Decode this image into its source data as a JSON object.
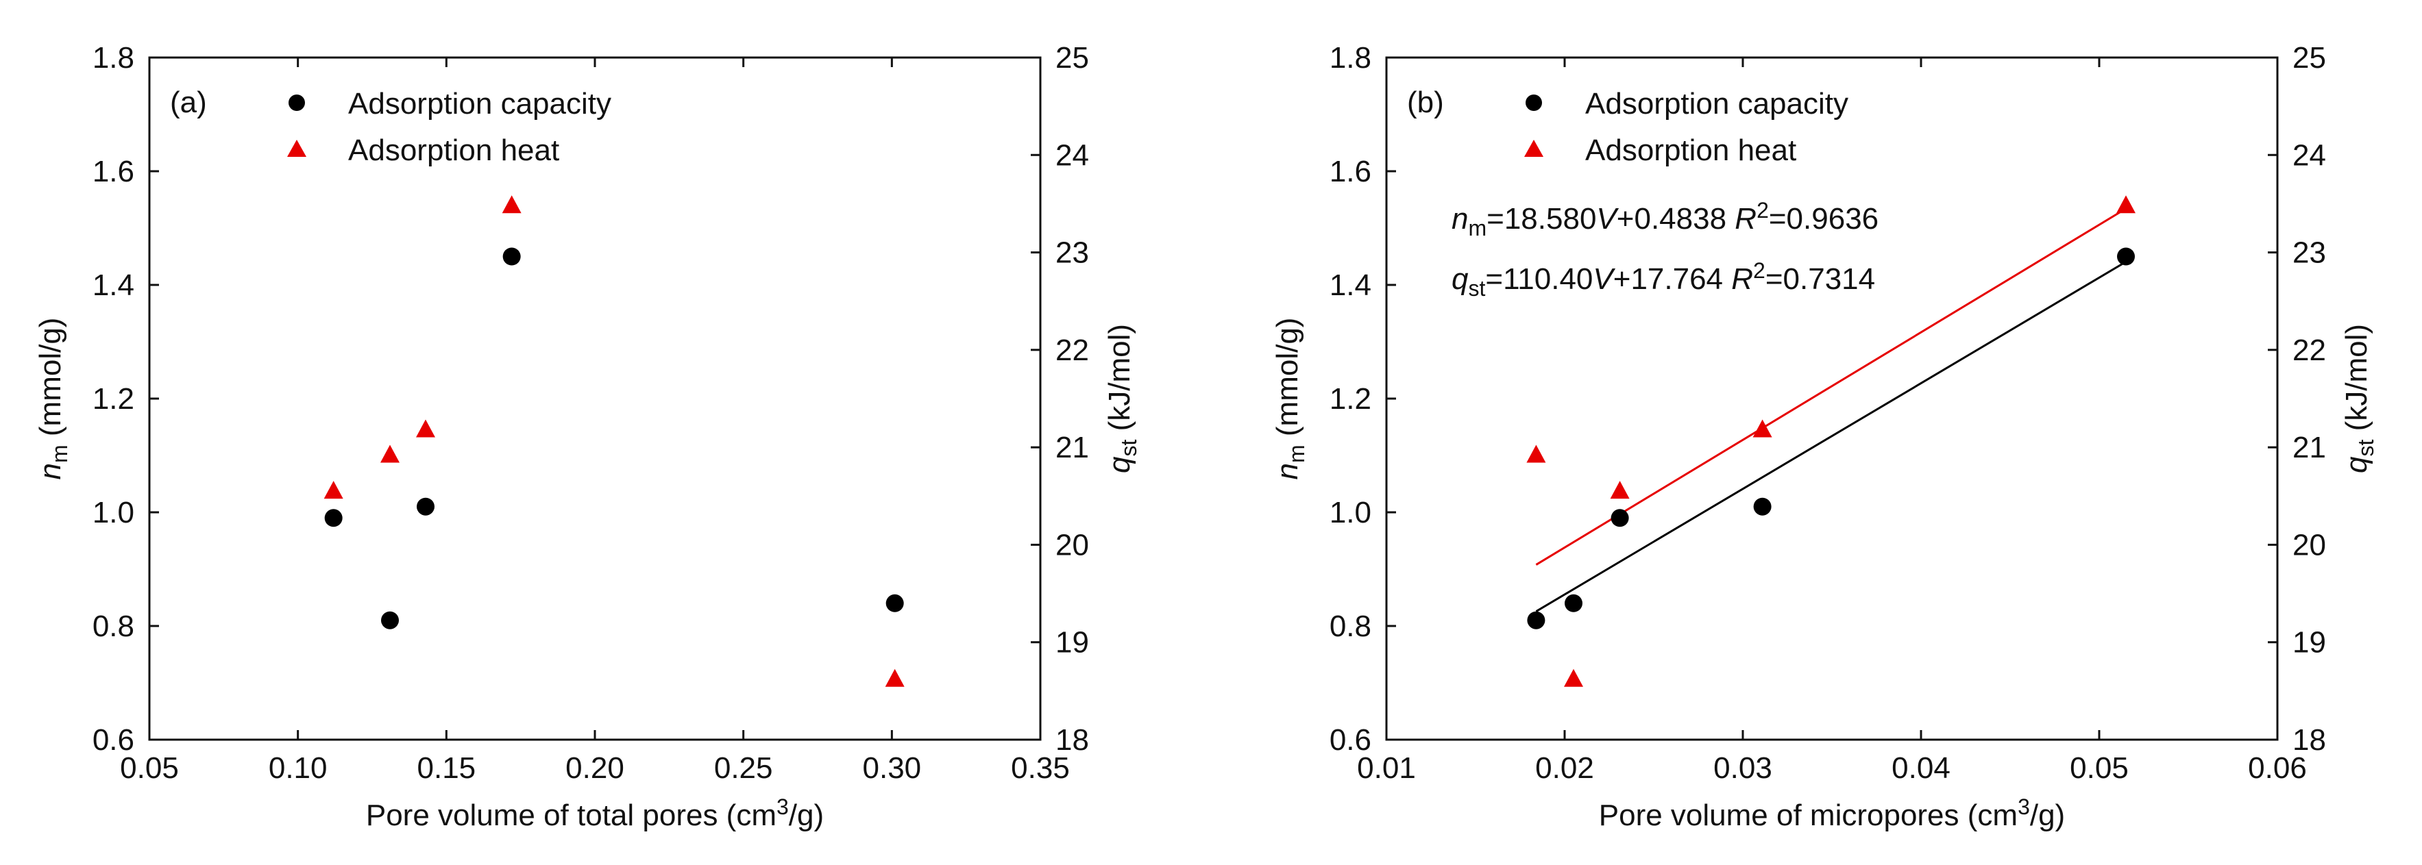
{
  "colors": {
    "capacity": "#000000",
    "heat": "#e60000",
    "axis": "#111111"
  },
  "chart_data": [
    {
      "type": "scatter",
      "panel_label": "(a)",
      "xlabel": "Pore volume of total pores  (cm³/g)",
      "ylabel_left": "nm (mmol/g)",
      "ylabel_right": "qst (kJ/mol)",
      "xlim": [
        0.05,
        0.35
      ],
      "xticks": [
        "0.05",
        "0.10",
        "0.15",
        "0.20",
        "0.25",
        "0.30",
        "0.35"
      ],
      "ylim_left": [
        0.6,
        1.8
      ],
      "yticks_left": [
        "0.6",
        "0.8",
        "1.0",
        "1.2",
        "1.4",
        "1.6",
        "1.8"
      ],
      "ylim_right": [
        18,
        25
      ],
      "yticks_right": [
        "18",
        "19",
        "20",
        "21",
        "22",
        "23",
        "24",
        "25"
      ],
      "legend": [
        "Adsorption capacity",
        "Adsorption heat"
      ],
      "legend_position": "top-left",
      "series": [
        {
          "name": "Adsorption capacity",
          "marker": "circle",
          "axis": "left",
          "points": [
            [
              0.112,
              0.99
            ],
            [
              0.131,
              0.81
            ],
            [
              0.143,
              1.01
            ],
            [
              0.172,
              1.45
            ],
            [
              0.301,
              0.84
            ]
          ]
        },
        {
          "name": "Adsorption heat",
          "marker": "triangle",
          "axis": "right",
          "points": [
            [
              0.112,
              20.55
            ],
            [
              0.131,
              20.92
            ],
            [
              0.143,
              21.18
            ],
            [
              0.172,
              23.48
            ],
            [
              0.301,
              18.62
            ]
          ]
        }
      ],
      "fits": [],
      "annotations": []
    },
    {
      "type": "scatter",
      "panel_label": "(b)",
      "xlabel": "Pore volume of micropores  (cm³/g)",
      "ylabel_left": "nm (mmol/g)",
      "ylabel_right": "qst (kJ/mol)",
      "xlim": [
        0.01,
        0.06
      ],
      "xticks": [
        "0.01",
        "0.02",
        "0.03",
        "0.04",
        "0.05",
        "0.06"
      ],
      "ylim_left": [
        0.6,
        1.8
      ],
      "yticks_left": [
        "0.6",
        "0.8",
        "1.0",
        "1.2",
        "1.4",
        "1.6",
        "1.8"
      ],
      "ylim_right": [
        18,
        25
      ],
      "yticks_right": [
        "18",
        "19",
        "20",
        "21",
        "22",
        "23",
        "24",
        "25"
      ],
      "legend": [
        "Adsorption capacity",
        "Adsorption heat"
      ],
      "legend_position": "top-left",
      "series": [
        {
          "name": "Adsorption capacity",
          "marker": "circle",
          "axis": "left",
          "points": [
            [
              0.0184,
              0.81
            ],
            [
              0.0205,
              0.84
            ],
            [
              0.0231,
              0.99
            ],
            [
              0.0311,
              1.01
            ],
            [
              0.0515,
              1.45
            ]
          ]
        },
        {
          "name": "Adsorption heat",
          "marker": "triangle",
          "axis": "right",
          "points": [
            [
              0.0184,
              20.92
            ],
            [
              0.0205,
              18.62
            ],
            [
              0.0231,
              20.55
            ],
            [
              0.0311,
              21.18
            ],
            [
              0.0515,
              23.48
            ]
          ]
        }
      ],
      "fits": [
        {
          "series": "Adsorption capacity",
          "axis": "left",
          "slope": 18.58,
          "intercept": 0.4838,
          "x_range": [
            0.0184,
            0.0515
          ]
        },
        {
          "series": "Adsorption heat",
          "axis": "right",
          "slope": 110.4,
          "intercept": 17.764,
          "x_range": [
            0.0184,
            0.0515
          ]
        }
      ],
      "annotations": [
        "nm=18.580V+0.4838  R2=0.9636",
        "qst=110.40V+17.764  R2=0.7314"
      ]
    }
  ]
}
